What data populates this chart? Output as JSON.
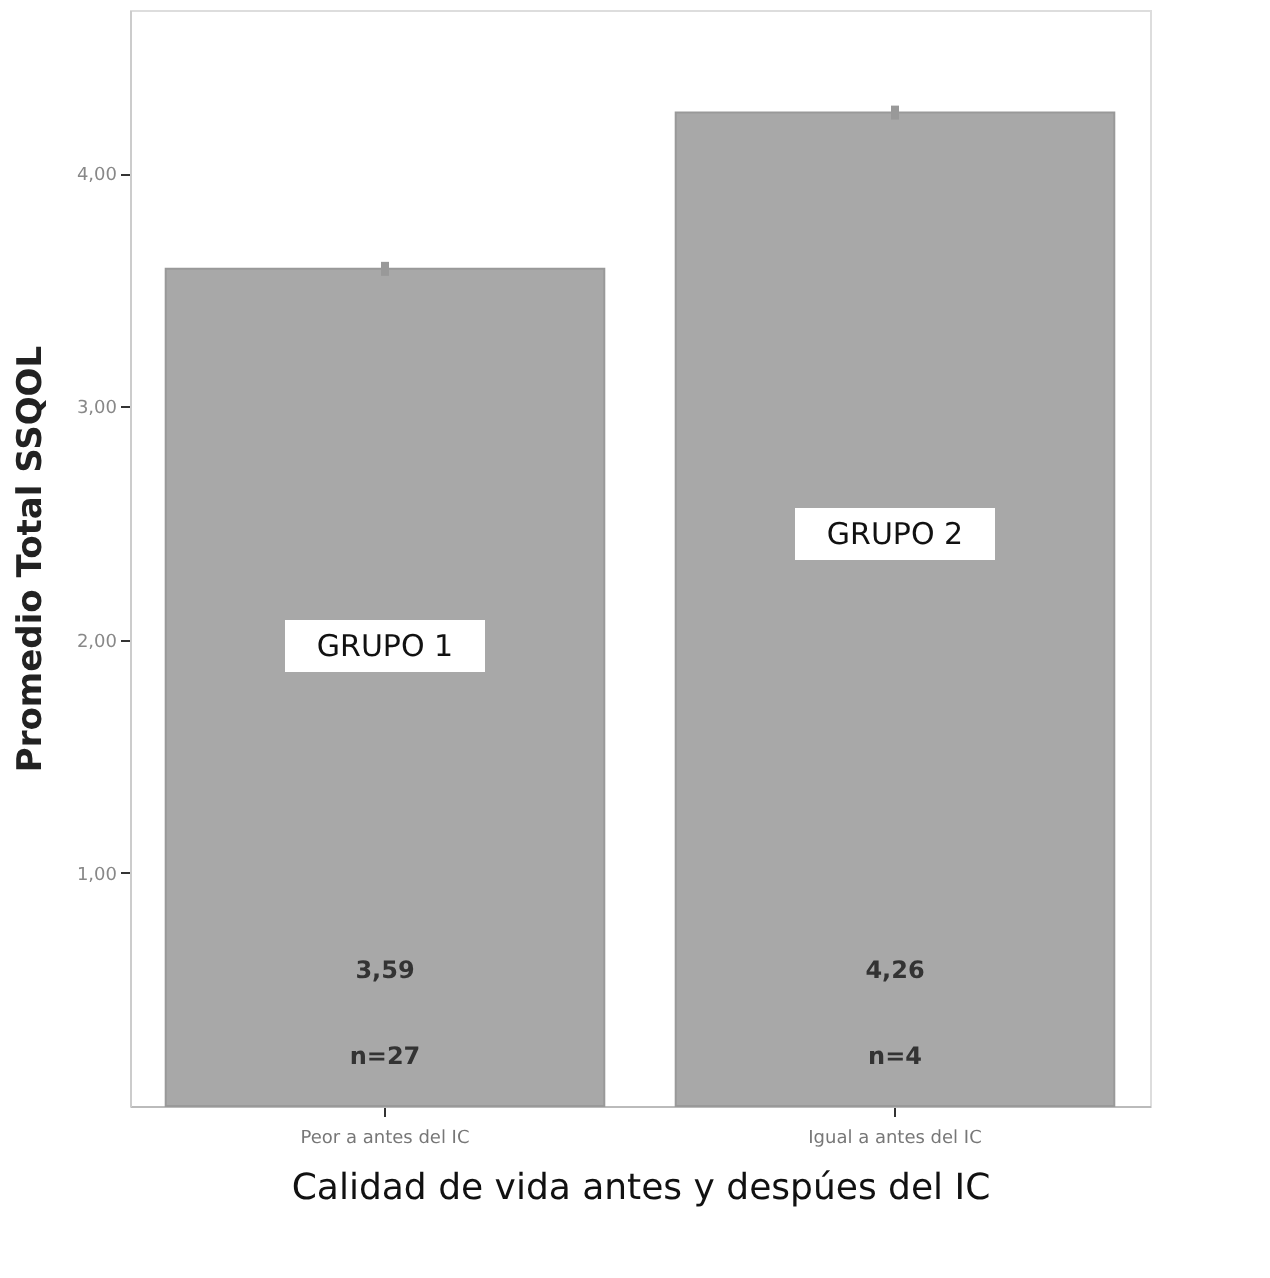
{
  "chart_data": {
    "type": "bar",
    "xlabel": "Calidad de vida antes y despúes del IC",
    "ylabel": "Promedio Total SSQOL",
    "categories": [
      "Peor a antes del IC",
      "Igual a antes del IC"
    ],
    "values": [
      3.59,
      4.26
    ],
    "errors": [
      0.03,
      0.03
    ],
    "color": "#a8a8a8",
    "value_labels": [
      "3,59",
      "4,26"
    ],
    "ylim": [
      0,
      4.7
    ],
    "yticks": [
      {
        "value": 1,
        "label": "1,00"
      },
      {
        "value": 2,
        "label": "2,00"
      },
      {
        "value": 3,
        "label": "3,00"
      },
      {
        "value": 4,
        "label": "4,00"
      }
    ],
    "grid": false,
    "annotations": [
      "n=27",
      "n=4",
      "GRUPO 1",
      "GRUPO 2"
    ]
  }
}
